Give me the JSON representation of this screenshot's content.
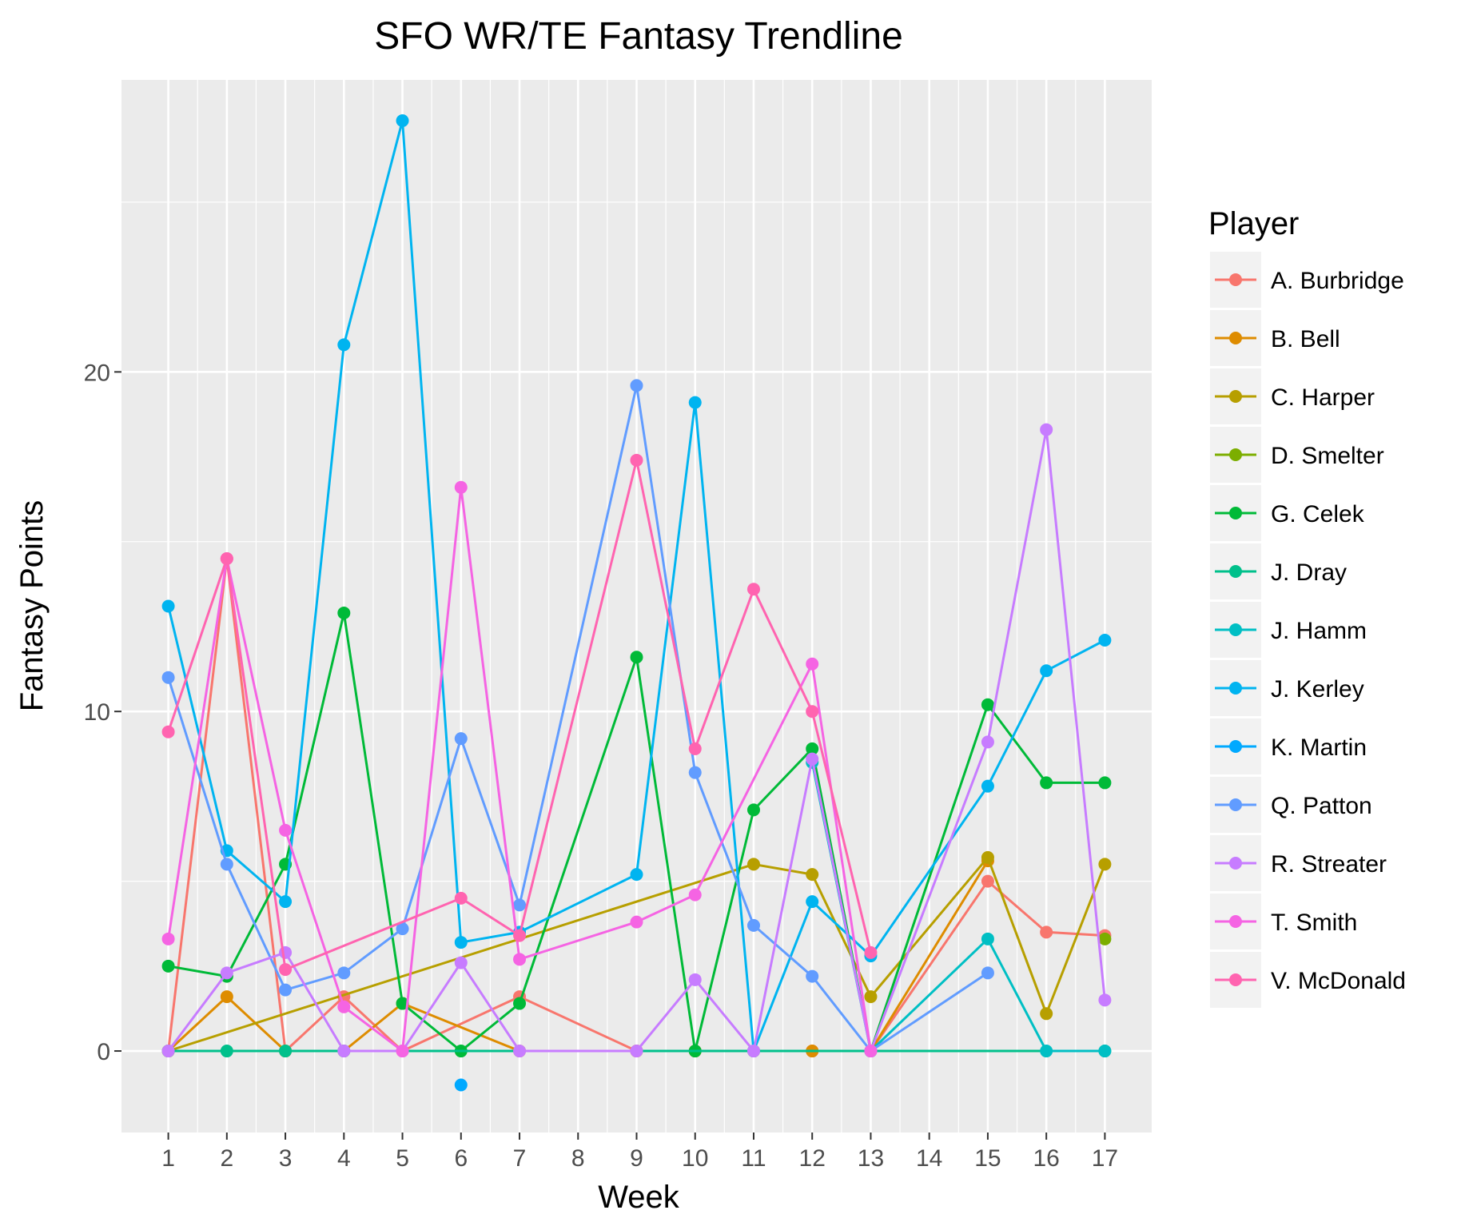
{
  "chart_data": {
    "type": "line",
    "title": "SFO WR/TE Fantasy Trendline",
    "xlabel": "Week",
    "ylabel": "Fantasy Points",
    "x_ticks": [
      "1",
      "2",
      "3",
      "4",
      "5",
      "6",
      "7",
      "8",
      "9",
      "10",
      "11",
      "12",
      "13",
      "14",
      "15",
      "16",
      "17"
    ],
    "y_ticks": [
      "0",
      "10",
      "20"
    ],
    "xlim": [
      0.2,
      17.8
    ],
    "ylim": [
      -2.4,
      28.6
    ],
    "grid": true,
    "legend": {
      "title": "Player",
      "placement": "right"
    },
    "series": [
      {
        "name": "A. Burbridge",
        "color": "#F8766D",
        "points": [
          [
            1,
            0
          ],
          [
            2,
            14.5
          ],
          [
            3,
            0
          ],
          [
            4,
            1.6
          ],
          [
            5,
            0
          ],
          [
            7,
            1.6
          ],
          [
            9,
            0
          ],
          [
            10,
            0
          ],
          [
            11,
            0
          ],
          [
            12,
            0
          ],
          [
            13,
            0
          ],
          [
            15,
            5
          ],
          [
            16,
            3.5
          ],
          [
            17,
            3.4
          ]
        ]
      },
      {
        "name": "B. Bell",
        "color": "#DE8C00",
        "points": [
          [
            1,
            0
          ],
          [
            2,
            1.6
          ],
          [
            3,
            0
          ],
          [
            4,
            0
          ],
          [
            5,
            1.4
          ],
          [
            7,
            0
          ],
          [
            9,
            0
          ],
          [
            10,
            0
          ],
          [
            11,
            0
          ],
          [
            12,
            0
          ],
          [
            13,
            0
          ],
          [
            15,
            5.6
          ]
        ]
      },
      {
        "name": "C. Harper",
        "color": "#B79F00",
        "points": [
          [
            1,
            0
          ],
          [
            11,
            5.5
          ],
          [
            12,
            5.2
          ],
          [
            13,
            1.6
          ],
          [
            15,
            5.7
          ],
          [
            16,
            1.1
          ],
          [
            17,
            5.5
          ]
        ]
      },
      {
        "name": "D. Smelter",
        "color": "#7CAE00",
        "points": [
          [
            17,
            3.3
          ]
        ]
      },
      {
        "name": "G. Celek",
        "color": "#00BA38",
        "points": [
          [
            1,
            2.5
          ],
          [
            2,
            2.2
          ],
          [
            3,
            5.5
          ],
          [
            4,
            12.9
          ],
          [
            5,
            1.4
          ],
          [
            6,
            0
          ],
          [
            7,
            1.4
          ],
          [
            9,
            11.6
          ],
          [
            10,
            0
          ],
          [
            11,
            7.1
          ],
          [
            12,
            8.9
          ],
          [
            13,
            0
          ],
          [
            15,
            10.2
          ],
          [
            16,
            7.9
          ],
          [
            17,
            7.9
          ]
        ]
      },
      {
        "name": "J. Dray",
        "color": "#00C08B",
        "points": [
          [
            1,
            0
          ],
          [
            2,
            0
          ],
          [
            3,
            0
          ],
          [
            4,
            0
          ],
          [
            17,
            0
          ]
        ]
      },
      {
        "name": "J. Hamm",
        "color": "#00BFC4",
        "points": [
          [
            12,
            8.5
          ],
          [
            13,
            0
          ],
          [
            15,
            3.3
          ],
          [
            16,
            0
          ],
          [
            17,
            0
          ]
        ]
      },
      {
        "name": "J. Kerley",
        "color": "#00B4F0",
        "points": [
          [
            1,
            13.1
          ],
          [
            2,
            5.9
          ],
          [
            3,
            4.4
          ],
          [
            4,
            20.8
          ],
          [
            5,
            27.4
          ],
          [
            6,
            3.2
          ],
          [
            7,
            3.5
          ],
          [
            9,
            5.2
          ],
          [
            10,
            19.1
          ],
          [
            11,
            0
          ],
          [
            12,
            4.4
          ],
          [
            13,
            2.8
          ],
          [
            15,
            7.8
          ],
          [
            16,
            11.2
          ],
          [
            17,
            12.1
          ]
        ]
      },
      {
        "name": "K. Martin",
        "color": "#00A9FF",
        "points": [
          [
            6,
            -1
          ]
        ]
      },
      {
        "name": "Q. Patton",
        "color": "#619CFF",
        "points": [
          [
            1,
            11
          ],
          [
            2,
            5.5
          ],
          [
            3,
            1.8
          ],
          [
            4,
            2.3
          ],
          [
            5,
            3.6
          ],
          [
            6,
            9.2
          ],
          [
            7,
            4.3
          ],
          [
            9,
            19.6
          ],
          [
            10,
            8.2
          ],
          [
            11,
            3.7
          ],
          [
            12,
            2.2
          ],
          [
            13,
            0
          ],
          [
            15,
            2.3
          ]
        ]
      },
      {
        "name": "R. Streater",
        "color": "#C77CFF",
        "points": [
          [
            1,
            0
          ],
          [
            2,
            2.3
          ],
          [
            3,
            2.9
          ],
          [
            4,
            0
          ],
          [
            5,
            0
          ],
          [
            6,
            2.6
          ],
          [
            7,
            0
          ],
          [
            9,
            0
          ],
          [
            10,
            2.1
          ],
          [
            11,
            0
          ],
          [
            12,
            8.6
          ],
          [
            13,
            0
          ],
          [
            15,
            9.1
          ],
          [
            16,
            18.3
          ],
          [
            17,
            1.5
          ]
        ]
      },
      {
        "name": "T. Smith",
        "color": "#F564E3",
        "points": [
          [
            1,
            3.3
          ],
          [
            2,
            14.5
          ],
          [
            3,
            6.5
          ],
          [
            4,
            1.3
          ],
          [
            5,
            0
          ],
          [
            6,
            16.6
          ],
          [
            7,
            2.7
          ],
          [
            9,
            3.8
          ],
          [
            10,
            4.6
          ],
          [
            12,
            11.4
          ],
          [
            13,
            0
          ]
        ]
      },
      {
        "name": "V. McDonald",
        "color": "#FF64B0",
        "points": [
          [
            1,
            9.4
          ],
          [
            2,
            14.5
          ],
          [
            3,
            2.4
          ],
          [
            6,
            4.5
          ],
          [
            7,
            3.4
          ],
          [
            9,
            17.4
          ],
          [
            10,
            8.9
          ],
          [
            11,
            13.6
          ],
          [
            12,
            10
          ],
          [
            13,
            2.9
          ]
        ]
      }
    ]
  }
}
